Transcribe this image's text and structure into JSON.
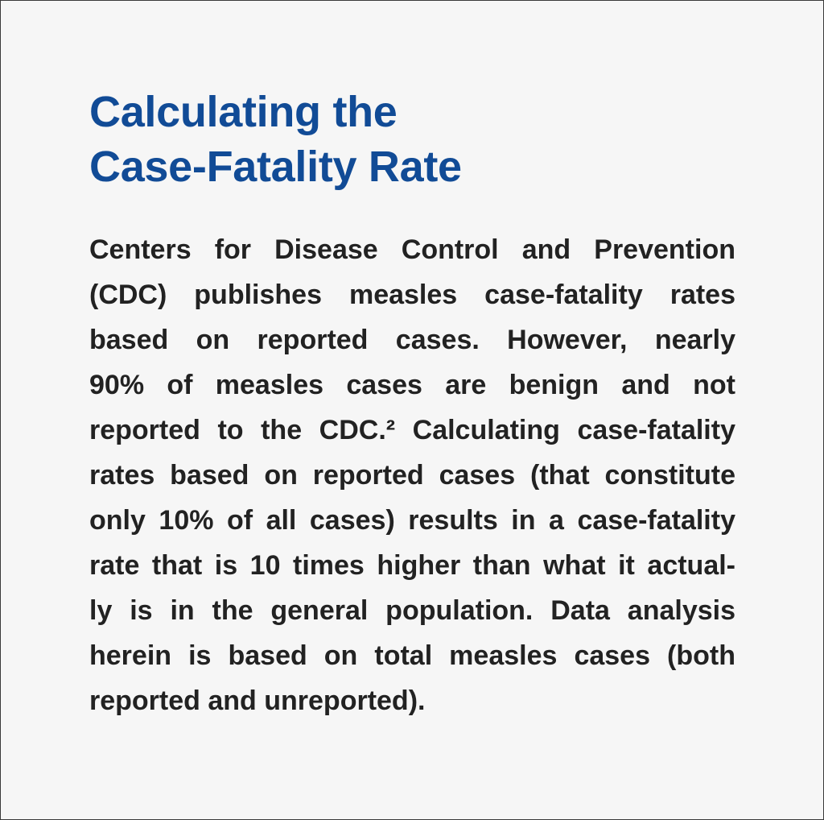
{
  "heading": {
    "line1": "Calculating the",
    "line2": "Case-Fatality Rate"
  },
  "body": {
    "lines": [
      "Centers for Disease Control and Prevention",
      "(CDC) publishes measles case-fatality rates",
      "based on reported cases. However, nearly",
      "90% of measles cases are benign and not",
      "reported to the CDC.² Calculating case-fatality",
      "rates based on reported cases (that constitute",
      "only 10% of all cases) results in a case-fatality",
      "rate that is 10 times higher than what it actual-",
      "ly is in the general population. Data analysis",
      "herein is based on total measles cases (both",
      "reported and unreported)."
    ]
  },
  "colors": {
    "heading": "#114b96",
    "body_text": "#222222",
    "background": "#f6f6f6"
  }
}
